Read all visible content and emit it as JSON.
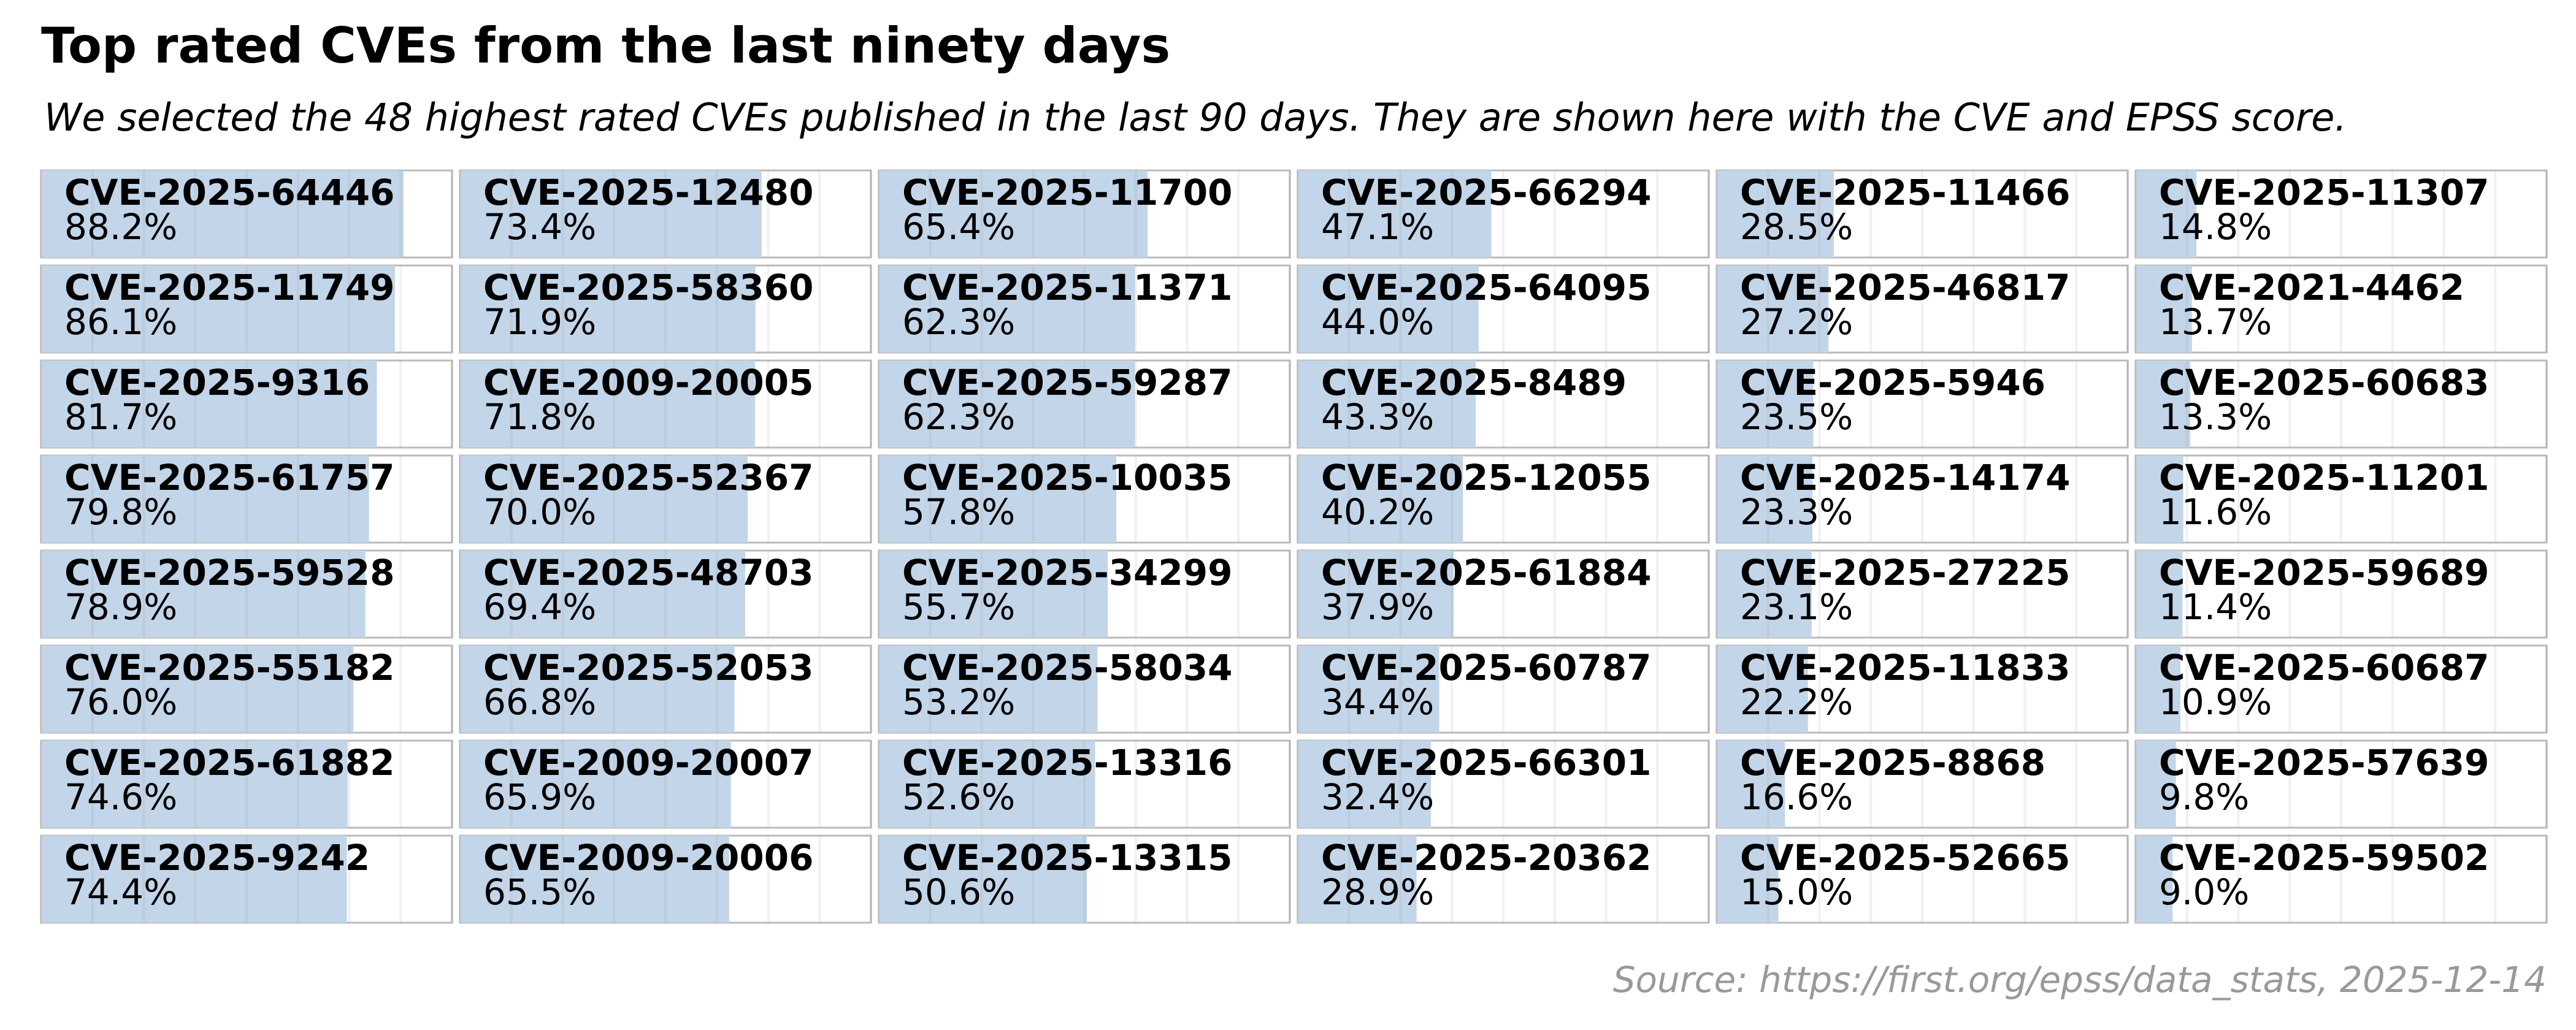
{
  "chart_data": {
    "type": "bar-grid",
    "title": "Top rated CVEs from the last ninety days",
    "subtitle": "We selected the 48 highest rated CVEs published in the last 90 days. They are shown here with the CVE and EPSS score.",
    "source": "Source: https://first.org/epss/data_stats, 2025-12-14",
    "color": "#c3d5e8",
    "xlim": [
      0,
      100
    ],
    "xticks": [
      0,
      12.5,
      25,
      37.5,
      50,
      62.5,
      75,
      87.5,
      100
    ],
    "categories": [
      "CVE-2025-64446",
      "CVE-2025-11749",
      "CVE-2025-9316",
      "CVE-2025-61757",
      "CVE-2025-59528",
      "CVE-2025-55182",
      "CVE-2025-61882",
      "CVE-2025-9242",
      "CVE-2025-12480",
      "CVE-2025-58360",
      "CVE-2009-20005",
      "CVE-2025-52367",
      "CVE-2025-48703",
      "CVE-2025-52053",
      "CVE-2009-20007",
      "CVE-2009-20006",
      "CVE-2025-11700",
      "CVE-2025-11371",
      "CVE-2025-59287",
      "CVE-2025-10035",
      "CVE-2025-34299",
      "CVE-2025-58034",
      "CVE-2025-13316",
      "CVE-2025-13315",
      "CVE-2025-66294",
      "CVE-2025-64095",
      "CVE-2025-8489",
      "CVE-2025-12055",
      "CVE-2025-61884",
      "CVE-2025-60787",
      "CVE-2025-66301",
      "CVE-2025-20362",
      "CVE-2025-11466",
      "CVE-2025-46817",
      "CVE-2025-5946",
      "CVE-2025-14174",
      "CVE-2025-27225",
      "CVE-2025-11833",
      "CVE-2025-8868",
      "CVE-2025-52665",
      "CVE-2025-11307",
      "CVE-2021-4462",
      "CVE-2025-60683",
      "CVE-2025-11201",
      "CVE-2025-59689",
      "CVE-2025-60687",
      "CVE-2025-57639",
      "CVE-2025-59502"
    ],
    "values": [
      88.2,
      86.1,
      81.7,
      79.8,
      78.9,
      76,
      74.6,
      74.4,
      73.4,
      71.9,
      71.8,
      70,
      69.4,
      66.8,
      65.9,
      65.5,
      65.4,
      62.3,
      62.3,
      57.8,
      55.7,
      53.2,
      52.6,
      50.6,
      47.1,
      44,
      43.3,
      40.2,
      37.9,
      34.4,
      32.4,
      28.9,
      28.5,
      27.2,
      23.5,
      23.3,
      23.1,
      22.2,
      16.6,
      15,
      14.8,
      13.7,
      13.3,
      11.6,
      11.4,
      10.9,
      9.8,
      9
    ],
    "value_labels": [
      "88.2%",
      "86.1%",
      "81.7%",
      "79.8%",
      "78.9%",
      "76.0%",
      "74.6%",
      "74.4%",
      "73.4%",
      "71.9%",
      "71.8%",
      "70.0%",
      "69.4%",
      "66.8%",
      "65.9%",
      "65.5%",
      "65.4%",
      "62.3%",
      "62.3%",
      "57.8%",
      "55.7%",
      "53.2%",
      "52.6%",
      "50.6%",
      "47.1%",
      "44.0%",
      "43.3%",
      "40.2%",
      "37.9%",
      "34.4%",
      "32.4%",
      "28.9%",
      "28.5%",
      "27.2%",
      "23.5%",
      "23.3%",
      "23.1%",
      "22.2%",
      "16.6%",
      "15.0%",
      "14.8%",
      "13.7%",
      "13.3%",
      "11.6%",
      "11.4%",
      "10.9%",
      "9.8%",
      "9.0%"
    ]
  }
}
